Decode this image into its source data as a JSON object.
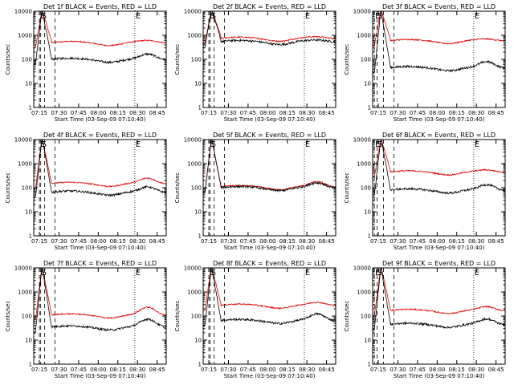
{
  "chart_data": {
    "type": "line",
    "y_scale": "log",
    "ylim": [
      1,
      10000
    ],
    "ylabel": "Counts/sec",
    "xlabel": "Start Time (03-Sep-09 07:10:40)",
    "x_ticks": [
      "07:15",
      "07:30",
      "07:45",
      "08:00",
      "08:15",
      "08:30",
      "08:45"
    ],
    "y_ticks": [
      "1",
      "10",
      "100",
      "1000",
      "10000"
    ],
    "series_colors": {
      "events": "#000000",
      "lld": "#e00000"
    },
    "panels": [
      {
        "title": "Det 1f BLACK = Events, RED = LLD",
        "marks": [
          {
            "t": "7:15",
            "label": "E"
          },
          {
            "t": "7:16",
            "label": "S"
          },
          {
            "t": "8:28",
            "label": "E"
          }
        ],
        "lld_base": 500,
        "event_base": 100,
        "lld_bump": 0.1,
        "event_bump": 0.5
      },
      {
        "title": "Det 2f BLACK = Events, RED = LLD",
        "marks": [
          {
            "t": "7:15",
            "label": "E"
          },
          {
            "t": "7:16",
            "label": "S"
          },
          {
            "t": "8:28",
            "label": "E"
          }
        ],
        "lld_base": 750,
        "event_base": 550,
        "lld_bump": 0.05,
        "event_bump": 0.05
      },
      {
        "title": "Det 3f BLACK = Events, RED = LLD",
        "marks": [
          {
            "t": "7:12",
            "label": "E"
          },
          {
            "t": "7:14",
            "label": "S"
          },
          {
            "t": "8:28",
            "label": "E"
          }
        ],
        "lld_base": 600,
        "event_base": 45,
        "lld_bump": 0.05,
        "event_bump": 0.6
      },
      {
        "title": "Det 4f BLACK = Events, RED = LLD",
        "marks": [
          {
            "t": "7:15",
            "label": "E"
          },
          {
            "t": "7:16",
            "label": "S"
          },
          {
            "t": "8:28",
            "label": "E"
          }
        ],
        "lld_base": 150,
        "event_base": 65,
        "lld_bump": 0.5,
        "event_bump": 0.5
      },
      {
        "title": "Det 5f BLACK = Events, RED = LLD",
        "marks": [
          {
            "t": "7:15",
            "label": "E"
          },
          {
            "t": "7:16",
            "label": "S"
          },
          {
            "t": "8:28",
            "label": "E"
          }
        ],
        "lld_base": 110,
        "event_base": 100,
        "lld_bump": 0.45,
        "event_bump": 0.45
      },
      {
        "title": "Det 6f BLACK = Events, RED = LLD",
        "marks": [
          {
            "t": "7:12",
            "label": "E"
          },
          {
            "t": "7:14",
            "label": "S"
          },
          {
            "t": "8:28",
            "label": "E"
          }
        ],
        "lld_base": 450,
        "event_base": 80,
        "lld_bump": 0.1,
        "event_bump": 0.5
      },
      {
        "title": "Det 7f BLACK = Events, RED = LLD",
        "marks": [
          {
            "t": "7:15",
            "label": "E"
          },
          {
            "t": "7:16",
            "label": "S"
          },
          {
            "t": "8:28",
            "label": "E"
          }
        ],
        "lld_base": 110,
        "event_base": 35,
        "lld_bump": 0.9,
        "event_bump": 0.9
      },
      {
        "title": "Det 8f BLACK = Events, RED = LLD",
        "marks": [
          {
            "t": "7:15",
            "label": "E"
          },
          {
            "t": "7:16",
            "label": "S"
          },
          {
            "t": "8:28",
            "label": "E"
          }
        ],
        "lld_base": 280,
        "event_base": 65,
        "lld_bump": 0.2,
        "event_bump": 0.7
      },
      {
        "title": "Det 9f BLACK = Events, RED = LLD",
        "marks": [
          {
            "t": "7:12",
            "label": "E"
          },
          {
            "t": "7:14",
            "label": "S"
          },
          {
            "t": "8:28",
            "label": "E"
          }
        ],
        "lld_base": 170,
        "event_base": 45,
        "lld_bump": 0.3,
        "event_bump": 0.5
      }
    ]
  }
}
